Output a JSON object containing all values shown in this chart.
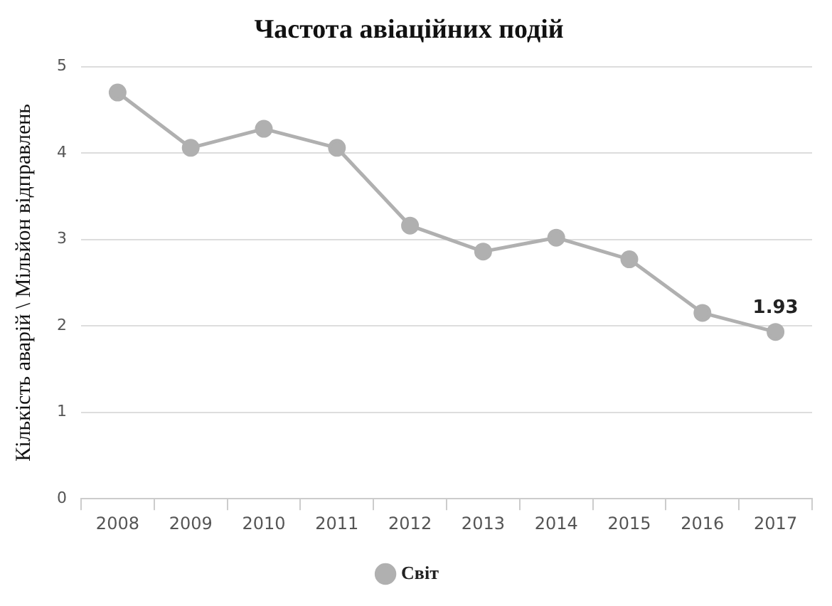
{
  "chart_data": {
    "type": "line",
    "title": "Частота авіаційних подій",
    "ylabel": "Кількість аварій \\ Мільйон відправлень",
    "categories": [
      "2008",
      "2009",
      "2010",
      "2011",
      "2012",
      "2013",
      "2014",
      "2015",
      "2016",
      "2017"
    ],
    "series": [
      {
        "name": "Світ",
        "color": "#b0b0b0",
        "values": [
          4.7,
          4.06,
          4.28,
          4.06,
          3.16,
          2.86,
          3.02,
          2.77,
          2.15,
          1.93
        ],
        "value_labels": [
          null,
          null,
          null,
          null,
          null,
          null,
          null,
          null,
          null,
          "1.93"
        ]
      }
    ],
    "ylim": [
      0,
      5
    ],
    "yticks": [
      0,
      1,
      2,
      3,
      4,
      5
    ],
    "grid": "y",
    "legend": "bottom",
    "marker": "circle",
    "line_style": "solid"
  }
}
